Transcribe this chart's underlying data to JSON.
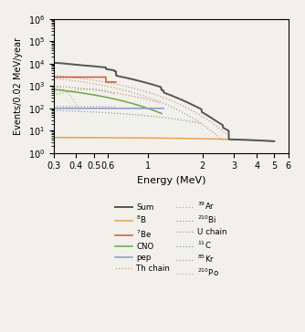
{
  "xlabel": "Energy (MeV)",
  "ylabel": "Events/0.02 MeV/year",
  "xlim": [
    0.3,
    6.0
  ],
  "ylim": [
    1,
    1000000.0
  ],
  "figsize": [
    3.34,
    3.64
  ],
  "dpi": 100,
  "bg_color": "#f2f0eb",
  "colors": {
    "sum": "#555555",
    "b8": "#e8a050",
    "be7": "#cc5533",
    "cno": "#66aa44",
    "pep": "#8899cc",
    "th": "#cc9999",
    "ar39": "#99bb99",
    "bi210": "#cc8888",
    "u": "#aaaa88",
    "c11": "#88aa88",
    "kr85": "#aaaaaa",
    "po210": "#bbbbaa"
  }
}
